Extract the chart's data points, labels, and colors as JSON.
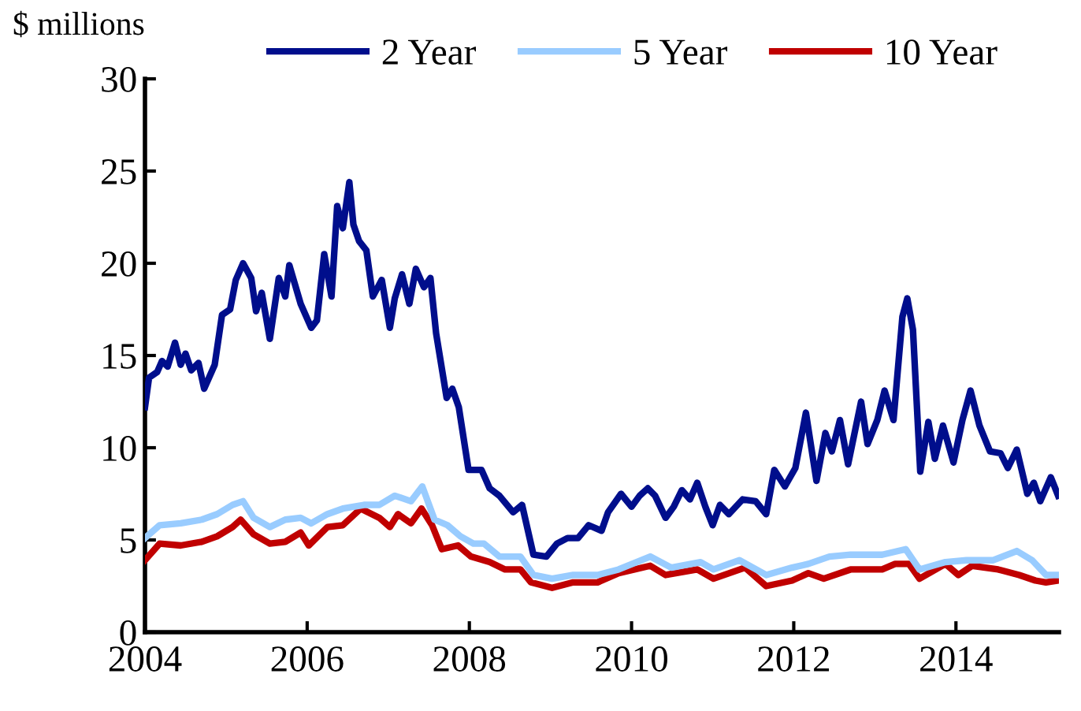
{
  "chart_data": {
    "type": "line",
    "ylabel": "$ millions",
    "xlim": [
      2004,
      2015.27
    ],
    "xticks": [
      2004,
      2006,
      2008,
      2010,
      2012,
      2014
    ],
    "ylim": [
      0,
      30
    ],
    "yticks": [
      0,
      5,
      10,
      15,
      20,
      25,
      30
    ],
    "grid": false,
    "legend": "top",
    "marker": "none",
    "line_style": "solid",
    "series": [
      {
        "name": "2 Year",
        "color": "#000e8c",
        "x": [
          2004.0,
          2004.05,
          2004.15,
          2004.21,
          2004.28,
          2004.37,
          2004.44,
          2004.5,
          2004.57,
          2004.66,
          2004.73,
          2004.86,
          2004.95,
          2005.05,
          2005.12,
          2005.21,
          2005.31,
          2005.37,
          2005.44,
          2005.54,
          2005.65,
          2005.73,
          2005.78,
          2005.92,
          2006.05,
          2006.12,
          2006.21,
          2006.3,
          2006.37,
          2006.44,
          2006.52,
          2006.57,
          2006.64,
          2006.73,
          2006.81,
          2006.92,
          2007.02,
          2007.08,
          2007.17,
          2007.26,
          2007.34,
          2007.44,
          2007.52,
          2007.59,
          2007.72,
          2007.79,
          2007.87,
          2007.99,
          2008.15,
          2008.25,
          2008.37,
          2008.54,
          2008.65,
          2008.79,
          2008.95,
          2009.08,
          2009.21,
          2009.34,
          2009.47,
          2009.63,
          2009.71,
          2009.87,
          2010.0,
          2010.1,
          2010.2,
          2010.29,
          2010.42,
          2010.52,
          2010.62,
          2010.72,
          2010.81,
          2010.91,
          2011.0,
          2011.09,
          2011.2,
          2011.37,
          2011.53,
          2011.66,
          2011.76,
          2011.89,
          2012.02,
          2012.15,
          2012.28,
          2012.39,
          2012.47,
          2012.57,
          2012.67,
          2012.83,
          2012.91,
          2013.03,
          2013.12,
          2013.23,
          2013.34,
          2013.4,
          2013.47,
          2013.56,
          2013.66,
          2013.74,
          2013.84,
          2013.97,
          2014.08,
          2014.18,
          2014.29,
          2014.42,
          2014.55,
          2014.64,
          2014.75,
          2014.88,
          2014.96,
          2015.04,
          2015.17,
          2015.26
        ],
        "values": [
          12.2,
          13.8,
          14.1,
          14.7,
          14.4,
          15.7,
          14.5,
          15.1,
          14.2,
          14.6,
          13.2,
          14.5,
          17.2,
          17.5,
          19.1,
          20.0,
          19.2,
          17.4,
          18.4,
          15.9,
          19.2,
          18.2,
          19.9,
          17.8,
          16.5,
          16.9,
          20.5,
          18.2,
          23.1,
          21.9,
          24.4,
          22.1,
          21.2,
          20.7,
          18.2,
          19.1,
          16.5,
          18.1,
          19.4,
          17.8,
          19.7,
          18.7,
          19.2,
          16.2,
          12.7,
          13.2,
          12.2,
          8.8,
          8.8,
          7.8,
          7.4,
          6.5,
          6.9,
          4.2,
          4.1,
          4.8,
          5.1,
          5.1,
          5.8,
          5.5,
          6.5,
          7.5,
          6.8,
          7.4,
          7.8,
          7.4,
          6.2,
          6.8,
          7.7,
          7.2,
          8.1,
          6.8,
          5.8,
          6.9,
          6.4,
          7.2,
          7.1,
          6.4,
          8.8,
          7.9,
          8.9,
          11.9,
          8.2,
          10.8,
          9.8,
          11.5,
          9.1,
          12.5,
          10.2,
          11.5,
          13.1,
          11.5,
          17.1,
          18.1,
          16.4,
          8.7,
          11.4,
          9.4,
          11.2,
          9.2,
          11.5,
          13.1,
          11.2,
          9.8,
          9.7,
          8.9,
          9.9,
          7.5,
          8.1,
          7.1,
          8.4,
          7.4
        ]
      },
      {
        "name": "5 Year",
        "color": "#99ccff",
        "x": [
          2004.0,
          2004.18,
          2004.44,
          2004.7,
          2004.89,
          2005.08,
          2005.21,
          2005.34,
          2005.54,
          2005.73,
          2005.92,
          2006.05,
          2006.25,
          2006.44,
          2006.7,
          2006.89,
          2007.08,
          2007.28,
          2007.42,
          2007.57,
          2007.73,
          2007.89,
          2008.05,
          2008.18,
          2008.37,
          2008.63,
          2008.79,
          2009.02,
          2009.28,
          2009.58,
          2009.84,
          2010.23,
          2010.49,
          2010.85,
          2011.01,
          2011.33,
          2011.66,
          2011.98,
          2012.18,
          2012.44,
          2012.7,
          2013.09,
          2013.38,
          2013.55,
          2013.87,
          2014.13,
          2014.46,
          2014.75,
          2014.94,
          2015.11,
          2015.26
        ],
        "values": [
          5.1,
          5.8,
          5.9,
          6.1,
          6.4,
          6.9,
          7.1,
          6.2,
          5.7,
          6.1,
          6.2,
          5.9,
          6.4,
          6.7,
          6.9,
          6.9,
          7.4,
          7.1,
          7.9,
          6.1,
          5.8,
          5.2,
          4.8,
          4.8,
          4.1,
          4.1,
          3.1,
          2.9,
          3.1,
          3.1,
          3.4,
          4.1,
          3.5,
          3.8,
          3.4,
          3.9,
          3.1,
          3.5,
          3.7,
          4.1,
          4.2,
          4.2,
          4.5,
          3.4,
          3.8,
          3.9,
          3.9,
          4.4,
          3.9,
          3.1,
          3.1
        ]
      },
      {
        "name": "10 Year",
        "color": "#c00000",
        "x": [
          2004.0,
          2004.18,
          2004.44,
          2004.7,
          2004.89,
          2005.08,
          2005.18,
          2005.34,
          2005.54,
          2005.73,
          2005.92,
          2006.02,
          2006.25,
          2006.44,
          2006.66,
          2006.89,
          2007.02,
          2007.12,
          2007.28,
          2007.41,
          2007.54,
          2007.66,
          2007.86,
          2008.02,
          2008.25,
          2008.44,
          2008.63,
          2008.76,
          2009.02,
          2009.28,
          2009.58,
          2009.84,
          2010.23,
          2010.42,
          2010.81,
          2011.01,
          2011.4,
          2011.66,
          2011.98,
          2012.18,
          2012.37,
          2012.7,
          2013.09,
          2013.25,
          2013.42,
          2013.55,
          2013.87,
          2014.03,
          2014.2,
          2014.52,
          2014.78,
          2014.98,
          2015.11,
          2015.26
        ],
        "values": [
          3.9,
          4.8,
          4.7,
          4.9,
          5.2,
          5.7,
          6.1,
          5.3,
          4.8,
          4.9,
          5.4,
          4.7,
          5.7,
          5.8,
          6.7,
          6.2,
          5.7,
          6.4,
          5.9,
          6.7,
          5.8,
          4.5,
          4.7,
          4.1,
          3.8,
          3.4,
          3.4,
          2.7,
          2.4,
          2.7,
          2.7,
          3.2,
          3.6,
          3.1,
          3.4,
          2.9,
          3.5,
          2.5,
          2.8,
          3.2,
          2.9,
          3.4,
          3.4,
          3.7,
          3.7,
          2.9,
          3.7,
          3.1,
          3.6,
          3.4,
          3.1,
          2.8,
          2.7,
          2.8
        ]
      }
    ]
  }
}
